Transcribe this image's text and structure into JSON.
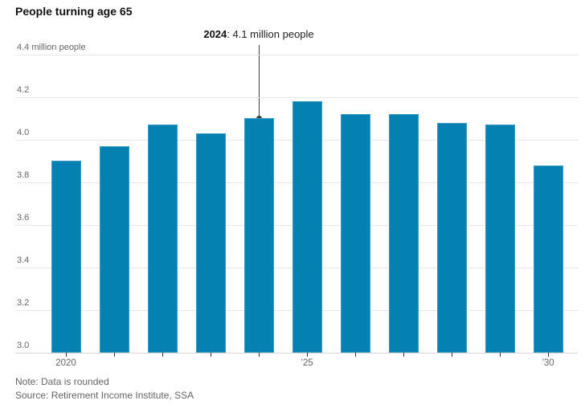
{
  "chart_data": {
    "type": "bar",
    "title": "People turning age 65",
    "categories": [
      "2020",
      "2021",
      "2022",
      "2023",
      "2024",
      "2025",
      "2026",
      "2027",
      "2028",
      "2029",
      "2030"
    ],
    "values": [
      3.9,
      3.97,
      4.07,
      4.03,
      4.1,
      4.18,
      4.12,
      4.12,
      4.08,
      4.07,
      3.88
    ],
    "unit": "million people",
    "xlabel": "",
    "ylabel": "",
    "ylim": [
      3.0,
      4.4
    ],
    "y_ticks": [
      4.4,
      4.2,
      4.0,
      3.8,
      3.6,
      3.4,
      3.2,
      3.0
    ],
    "y_top_tick_label": "4.4 million people",
    "x_tick_labels": {
      "2020": "2020",
      "2025": "’25",
      "2030": "’30"
    },
    "grid": true,
    "legend": "none",
    "annotation": {
      "category": "2024",
      "value": 4.1,
      "label_bold": "2024",
      "label_rest": ": 4.1 million people"
    },
    "note": "Note: Data is rounded",
    "source": "Source: Retirement Income Institute, SSA",
    "colors": {
      "bar": "#0580b2",
      "gridline": "#e8e8e8",
      "axis_line": "#d4d4d4",
      "tick": "#333333",
      "axis_text": "#666666",
      "title_text": "#111111",
      "annotation_text": "#222222",
      "annotation_line": "#3f3f3f",
      "background": "#ffffff"
    }
  }
}
